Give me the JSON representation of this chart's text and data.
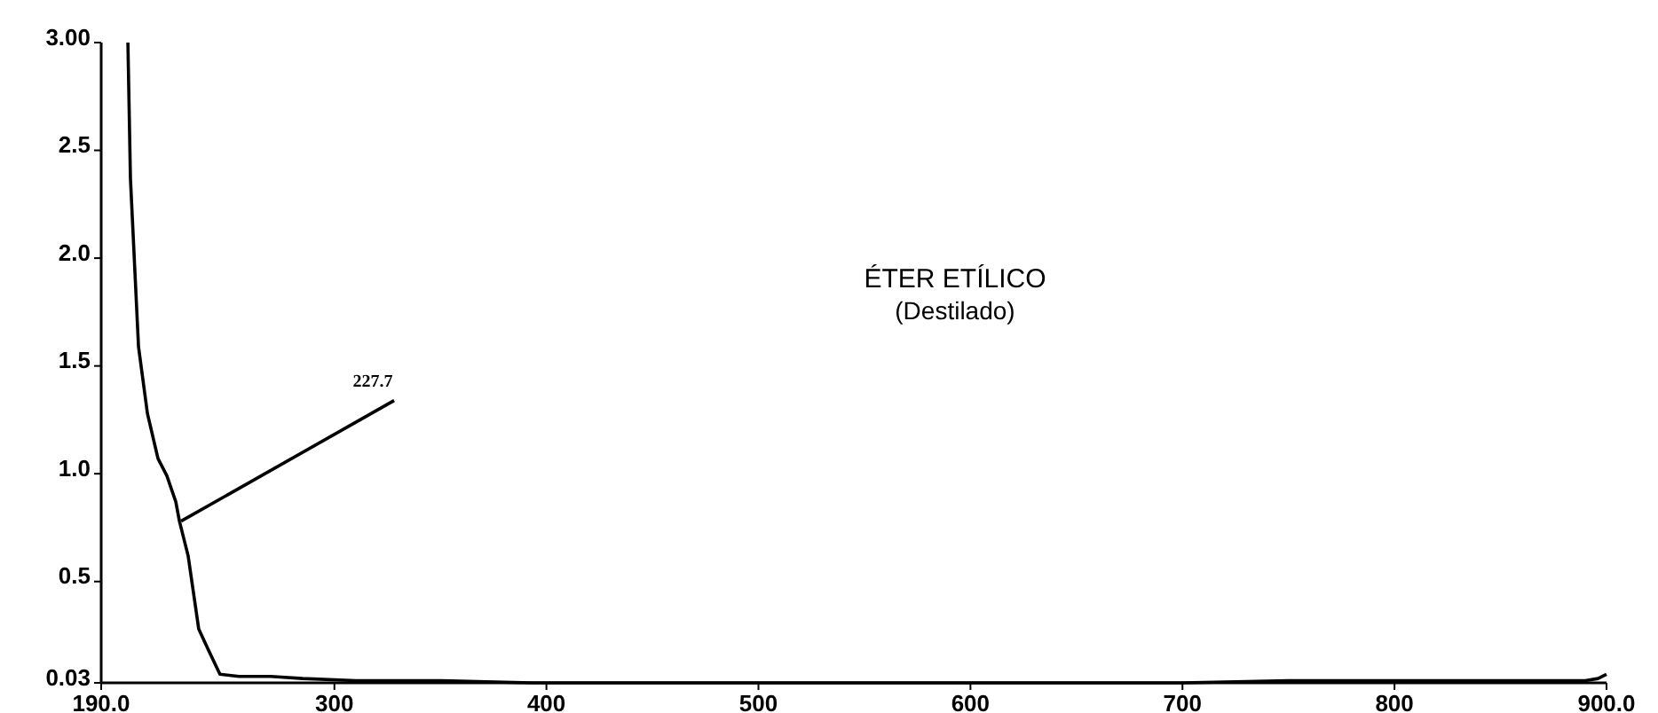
{
  "chart_data": {
    "type": "line",
    "title": "ÉTER ETÍLICO",
    "subtitle": "(Destilado)",
    "x": [
      202.6,
      203.8,
      207.6,
      211.8,
      216.8,
      221,
      225.2,
      226.9,
      231,
      236,
      240.2,
      246,
      255,
      270,
      285,
      310,
      350,
      393,
      450,
      500,
      600,
      700,
      750,
      800,
      850,
      890,
      896,
      900
    ],
    "series": [
      {
        "color": "#000000",
        "values": [
          3.0,
          2.37,
          1.59,
          1.28,
          1.07,
          0.99,
          0.87,
          0.78,
          0.62,
          0.28,
          0.19,
          0.07,
          0.06,
          0.06,
          0.05,
          0.04,
          0.04,
          0.03,
          0.03,
          0.03,
          0.03,
          0.03,
          0.04,
          0.04,
          0.04,
          0.04,
          0.05,
          0.07
        ]
      }
    ],
    "xlim": [
      190,
      900
    ],
    "ylim": [
      0.03,
      3.0
    ],
    "xticks": [
      {
        "value": 190,
        "label": "190.0"
      },
      300,
      400,
      500,
      600,
      700,
      800,
      {
        "value": 900,
        "label": "900.0"
      }
    ],
    "yticks": [
      {
        "value": 0.03,
        "label": "0.03"
      },
      0.5,
      {
        "value": 1,
        "label": "1.0"
      },
      1.5,
      {
        "value": 2,
        "label": "2.0"
      },
      2.5,
      {
        "value": 3,
        "label": "3.00"
      }
    ],
    "annotations": [
      {
        "text": "227.7",
        "x": 227.7,
        "y": 0.78
      }
    ],
    "grid": false,
    "marker": "none",
    "line_style": "solid"
  }
}
